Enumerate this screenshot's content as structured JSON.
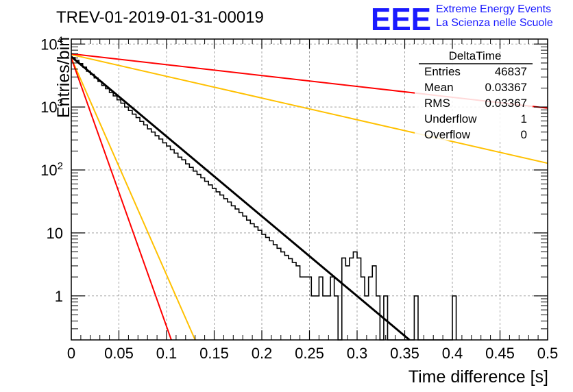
{
  "title": "TREV-01-2019-01-31-00019",
  "logo": {
    "text": "EEE",
    "line1": "Extreme Energy Events",
    "line2": "La Scienza nelle Scuole",
    "color": "#1a1aff"
  },
  "stats": {
    "name": "DeltaTime",
    "rows": [
      {
        "label": "Entries",
        "value": "46837"
      },
      {
        "label": "Mean",
        "value": "0.03367"
      },
      {
        "label": "RMS",
        "value": "0.03367"
      },
      {
        "label": "Underflow",
        "value": "1"
      },
      {
        "label": "Overflow",
        "value": "0"
      }
    ]
  },
  "chart_data": {
    "type": "histogram",
    "xlabel": "Time difference [s]",
    "ylabel": "Entries/bin",
    "xlim": [
      0,
      0.5
    ],
    "ylim": [
      0.2,
      12000
    ],
    "yscale": "log",
    "grid": true,
    "x_ticks": [
      "0",
      "0.05",
      "0.1",
      "0.15",
      "0.2",
      "0.25",
      "0.3",
      "0.35",
      "0.4",
      "0.45",
      "0.5"
    ],
    "y_ticks": [
      "1",
      "10",
      "10^2",
      "10^3",
      "10^4"
    ],
    "bin_width": 0.004,
    "histogram_color": "#000000",
    "bins": [
      {
        "x": 0.0,
        "y": 6100
      },
      {
        "x": 0.004,
        "y": 5500
      },
      {
        "x": 0.008,
        "y": 4900
      },
      {
        "x": 0.012,
        "y": 4300
      },
      {
        "x": 0.016,
        "y": 3700
      },
      {
        "x": 0.02,
        "y": 3300
      },
      {
        "x": 0.024,
        "y": 2900
      },
      {
        "x": 0.028,
        "y": 2550
      },
      {
        "x": 0.032,
        "y": 2200
      },
      {
        "x": 0.036,
        "y": 1950
      },
      {
        "x": 0.04,
        "y": 1700
      },
      {
        "x": 0.044,
        "y": 1500
      },
      {
        "x": 0.048,
        "y": 1300
      },
      {
        "x": 0.052,
        "y": 1150
      },
      {
        "x": 0.056,
        "y": 1000
      },
      {
        "x": 0.06,
        "y": 880
      },
      {
        "x": 0.064,
        "y": 770
      },
      {
        "x": 0.068,
        "y": 680
      },
      {
        "x": 0.072,
        "y": 590
      },
      {
        "x": 0.076,
        "y": 520
      },
      {
        "x": 0.08,
        "y": 450
      },
      {
        "x": 0.084,
        "y": 400
      },
      {
        "x": 0.088,
        "y": 350
      },
      {
        "x": 0.092,
        "y": 310
      },
      {
        "x": 0.096,
        "y": 270
      },
      {
        "x": 0.1,
        "y": 240
      },
      {
        "x": 0.104,
        "y": 210
      },
      {
        "x": 0.108,
        "y": 185
      },
      {
        "x": 0.112,
        "y": 160
      },
      {
        "x": 0.116,
        "y": 145
      },
      {
        "x": 0.12,
        "y": 125
      },
      {
        "x": 0.124,
        "y": 110
      },
      {
        "x": 0.128,
        "y": 96
      },
      {
        "x": 0.132,
        "y": 85
      },
      {
        "x": 0.136,
        "y": 75
      },
      {
        "x": 0.14,
        "y": 66
      },
      {
        "x": 0.144,
        "y": 58
      },
      {
        "x": 0.148,
        "y": 51
      },
      {
        "x": 0.152,
        "y": 45
      },
      {
        "x": 0.156,
        "y": 40
      },
      {
        "x": 0.16,
        "y": 35
      },
      {
        "x": 0.164,
        "y": 31
      },
      {
        "x": 0.168,
        "y": 27
      },
      {
        "x": 0.172,
        "y": 24
      },
      {
        "x": 0.176,
        "y": 21
      },
      {
        "x": 0.18,
        "y": 18.5
      },
      {
        "x": 0.184,
        "y": 16
      },
      {
        "x": 0.188,
        "y": 14
      },
      {
        "x": 0.192,
        "y": 12.5
      },
      {
        "x": 0.196,
        "y": 11
      },
      {
        "x": 0.2,
        "y": 9.5
      },
      {
        "x": 0.204,
        "y": 8.5
      },
      {
        "x": 0.208,
        "y": 7.5
      },
      {
        "x": 0.212,
        "y": 6.5
      },
      {
        "x": 0.216,
        "y": 5.7
      },
      {
        "x": 0.22,
        "y": 5
      },
      {
        "x": 0.224,
        "y": 4.4
      },
      {
        "x": 0.228,
        "y": 3.9
      },
      {
        "x": 0.232,
        "y": 3.4
      },
      {
        "x": 0.236,
        "y": 3
      },
      {
        "x": 0.24,
        "y": 2
      },
      {
        "x": 0.244,
        "y": 2
      },
      {
        "x": 0.248,
        "y": 2
      },
      {
        "x": 0.252,
        "y": 1
      },
      {
        "x": 0.256,
        "y": 1
      },
      {
        "x": 0.26,
        "y": 2
      },
      {
        "x": 0.264,
        "y": 1
      },
      {
        "x": 0.268,
        "y": 1
      },
      {
        "x": 0.272,
        "y": 2
      },
      {
        "x": 0.276,
        "y": 1
      },
      {
        "x": 0.28,
        "y": 0
      },
      {
        "x": 0.284,
        "y": 4
      },
      {
        "x": 0.288,
        "y": 3
      },
      {
        "x": 0.292,
        "y": 4
      },
      {
        "x": 0.296,
        "y": 5
      },
      {
        "x": 0.3,
        "y": 4
      },
      {
        "x": 0.304,
        "y": 2
      },
      {
        "x": 0.308,
        "y": 1
      },
      {
        "x": 0.312,
        "y": 2
      },
      {
        "x": 0.316,
        "y": 3
      },
      {
        "x": 0.32,
        "y": 1
      },
      {
        "x": 0.324,
        "y": 0
      },
      {
        "x": 0.328,
        "y": 1
      },
      {
        "x": 0.332,
        "y": 0
      },
      {
        "x": 0.336,
        "y": 0
      },
      {
        "x": 0.34,
        "y": 0
      },
      {
        "x": 0.344,
        "y": 0
      },
      {
        "x": 0.348,
        "y": 0
      },
      {
        "x": 0.352,
        "y": 0
      },
      {
        "x": 0.356,
        "y": 0
      },
      {
        "x": 0.36,
        "y": 1
      },
      {
        "x": 0.364,
        "y": 0
      },
      {
        "x": 0.368,
        "y": 0
      },
      {
        "x": 0.372,
        "y": 0
      },
      {
        "x": 0.376,
        "y": 0
      },
      {
        "x": 0.38,
        "y": 0
      },
      {
        "x": 0.384,
        "y": 0
      },
      {
        "x": 0.388,
        "y": 0
      },
      {
        "x": 0.392,
        "y": 0
      },
      {
        "x": 0.396,
        "y": 0
      },
      {
        "x": 0.4,
        "y": 1
      }
    ],
    "fit_curves": [
      {
        "color": "#000000",
        "points": [
          [
            0,
            6300
          ],
          [
            0.355,
            0.2
          ]
        ]
      },
      {
        "color": "#ffc000",
        "points": [
          [
            0,
            6000
          ],
          [
            0.13,
            0.2
          ]
        ]
      },
      {
        "color": "#ff0000",
        "points": [
          [
            0,
            6000
          ],
          [
            0.105,
            0.2
          ]
        ]
      },
      {
        "color": "#ffc000",
        "points": [
          [
            0,
            6800
          ],
          [
            0.5,
            128
          ]
        ]
      },
      {
        "color": "#ff0000",
        "points": [
          [
            0,
            7000
          ],
          [
            0.5,
            960
          ]
        ]
      }
    ]
  }
}
